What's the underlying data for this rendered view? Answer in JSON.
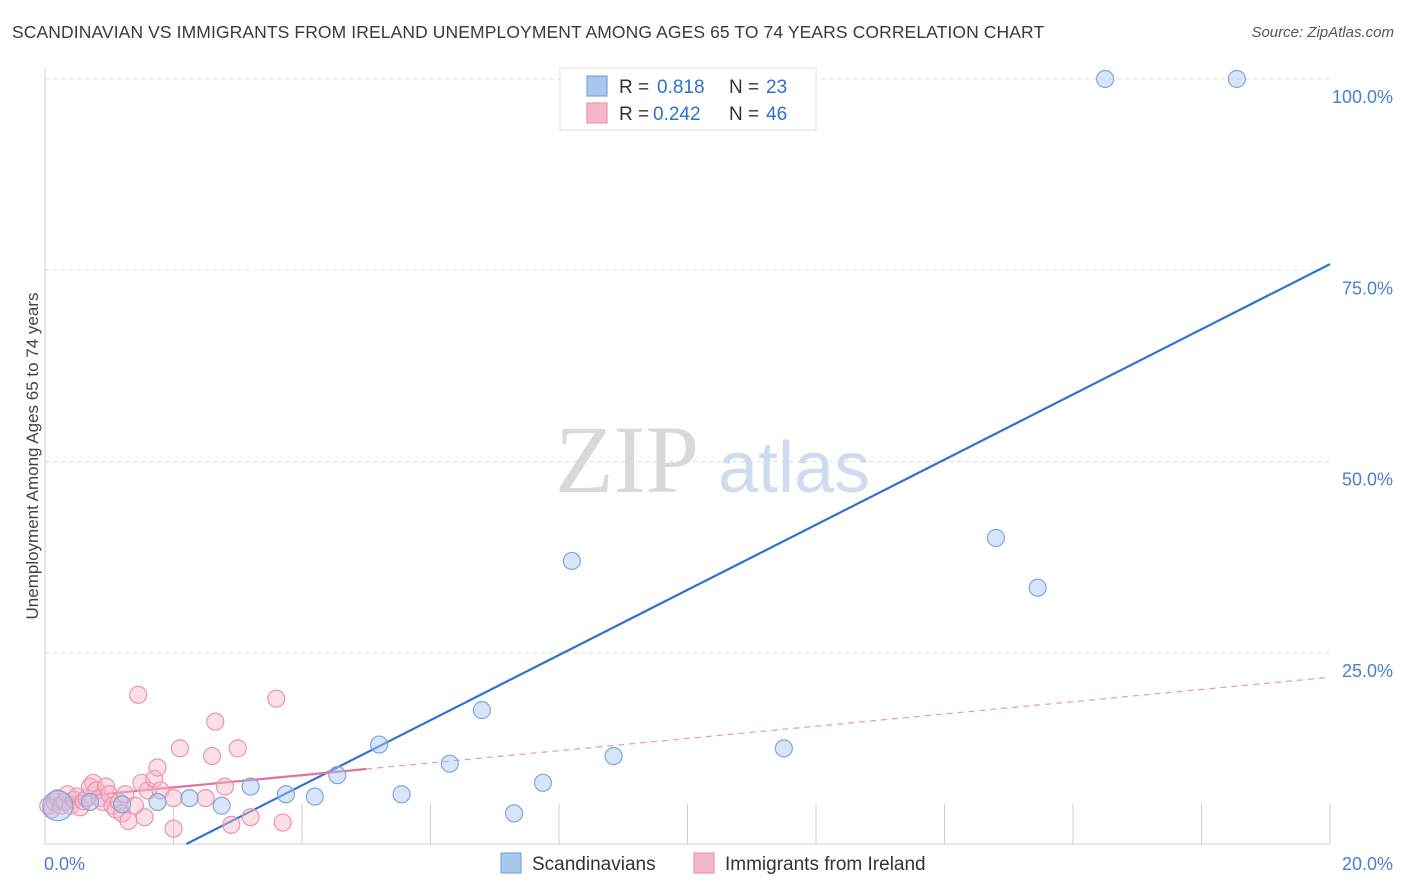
{
  "header": {
    "title": "SCANDINAVIAN VS IMMIGRANTS FROM IRELAND UNEMPLOYMENT AMONG AGES 65 TO 74 YEARS CORRELATION CHART",
    "source": "Source: ZipAtlas.com"
  },
  "watermark": {
    "zip": "ZIP",
    "atlas": "atlas"
  },
  "legend": {
    "series1": {
      "r_label": "R =",
      "r_value": "0.818",
      "n_label": "N =",
      "n_value": "23"
    },
    "series2": {
      "r_label": "R =",
      "r_value": "0.242",
      "n_label": "N =",
      "n_value": "46"
    }
  },
  "bottom_legend": {
    "series1": "Scandinavians",
    "series2": "Immigrants from Ireland"
  },
  "chart_data": {
    "type": "scatter",
    "title": "SCANDINAVIAN VS IMMIGRANTS FROM IRELAND UNEMPLOYMENT AMONG AGES 65 TO 74 YEARS CORRELATION CHART",
    "xlabel": "",
    "ylabel": "Unemployment Among Ages 65 to 74 years",
    "xlim": [
      0,
      20
    ],
    "ylim": [
      0,
      102
    ],
    "x_tick_labels": [
      "0.0%",
      "20.0%"
    ],
    "y_ticks": [
      25,
      50,
      75,
      100
    ],
    "y_tick_labels": [
      "25.0%",
      "50.0%",
      "75.0%",
      "100.0%"
    ],
    "grid": true,
    "colors": {
      "series1": "#a9c6ef",
      "series1_stroke": "#7ea6dd",
      "series1_line": "#2f72cf",
      "series2": "#f5b8ca",
      "series2_stroke": "#ec94ae",
      "series2_line": "#e8719a"
    },
    "series": [
      {
        "name": "Scandinavians",
        "r": 0.818,
        "n": 23,
        "points": [
          {
            "x": 0.2,
            "y": 5.0,
            "big": true
          },
          {
            "x": 0.7,
            "y": 5.5
          },
          {
            "x": 1.2,
            "y": 5.2
          },
          {
            "x": 1.75,
            "y": 5.5
          },
          {
            "x": 2.25,
            "y": 6.0
          },
          {
            "x": 2.75,
            "y": 5.0
          },
          {
            "x": 3.2,
            "y": 7.5
          },
          {
            "x": 3.75,
            "y": 6.5
          },
          {
            "x": 4.2,
            "y": 6.2
          },
          {
            "x": 4.55,
            "y": 9.0
          },
          {
            "x": 5.2,
            "y": 13.0
          },
          {
            "x": 5.55,
            "y": 6.5
          },
          {
            "x": 6.3,
            "y": 10.5
          },
          {
            "x": 6.8,
            "y": 17.5
          },
          {
            "x": 7.3,
            "y": 4.0
          },
          {
            "x": 7.75,
            "y": 8.0
          },
          {
            "x": 8.2,
            "y": 37.0
          },
          {
            "x": 8.85,
            "y": 11.5
          },
          {
            "x": 11.5,
            "y": 12.5
          },
          {
            "x": 14.8,
            "y": 40.0
          },
          {
            "x": 15.45,
            "y": 33.5
          },
          {
            "x": 16.5,
            "y": 100.0
          },
          {
            "x": 18.55,
            "y": 100.0
          }
        ],
        "trend": {
          "x0": 2.2,
          "y0": 0.0,
          "x1": 20.0,
          "y1": 75.8
        }
      },
      {
        "name": "Immigrants from Ireland",
        "r": 0.242,
        "n": 46,
        "points": [
          {
            "x": 0.05,
            "y": 5.0
          },
          {
            "x": 0.1,
            "y": 4.5
          },
          {
            "x": 0.15,
            "y": 5.5
          },
          {
            "x": 0.2,
            "y": 6.0
          },
          {
            "x": 0.25,
            "y": 5.0
          },
          {
            "x": 0.3,
            "y": 5.5
          },
          {
            "x": 0.35,
            "y": 6.5
          },
          {
            "x": 0.4,
            "y": 5.0
          },
          {
            "x": 0.45,
            "y": 5.8
          },
          {
            "x": 0.5,
            "y": 6.2
          },
          {
            "x": 0.55,
            "y": 4.8
          },
          {
            "x": 0.6,
            "y": 5.6
          },
          {
            "x": 0.65,
            "y": 6.0
          },
          {
            "x": 0.7,
            "y": 7.5
          },
          {
            "x": 0.75,
            "y": 8.0
          },
          {
            "x": 0.8,
            "y": 7.0
          },
          {
            "x": 0.85,
            "y": 6.0
          },
          {
            "x": 0.9,
            "y": 5.5
          },
          {
            "x": 0.95,
            "y": 7.5
          },
          {
            "x": 1.0,
            "y": 6.5
          },
          {
            "x": 1.05,
            "y": 5.0
          },
          {
            "x": 1.1,
            "y": 4.5
          },
          {
            "x": 1.15,
            "y": 5.5
          },
          {
            "x": 1.2,
            "y": 4.0
          },
          {
            "x": 1.25,
            "y": 6.5
          },
          {
            "x": 1.3,
            "y": 3.0
          },
          {
            "x": 1.4,
            "y": 5.0
          },
          {
            "x": 1.45,
            "y": 19.5
          },
          {
            "x": 1.5,
            "y": 8.0
          },
          {
            "x": 1.55,
            "y": 3.5
          },
          {
            "x": 1.6,
            "y": 7.0
          },
          {
            "x": 1.7,
            "y": 8.5
          },
          {
            "x": 1.75,
            "y": 10.0
          },
          {
            "x": 1.8,
            "y": 7.0
          },
          {
            "x": 2.0,
            "y": 6.0
          },
          {
            "x": 2.0,
            "y": 2.0
          },
          {
            "x": 2.1,
            "y": 12.5
          },
          {
            "x": 2.5,
            "y": 6.0
          },
          {
            "x": 2.6,
            "y": 11.5
          },
          {
            "x": 2.65,
            "y": 16.0
          },
          {
            "x": 2.8,
            "y": 7.5
          },
          {
            "x": 2.9,
            "y": 2.5
          },
          {
            "x": 3.0,
            "y": 12.5
          },
          {
            "x": 3.2,
            "y": 3.5
          },
          {
            "x": 3.6,
            "y": 19.0
          },
          {
            "x": 3.7,
            "y": 2.8
          }
        ],
        "trend_solid": {
          "x0": 0.0,
          "y0": 5.8,
          "x1": 5.0,
          "y1": 9.8
        },
        "trend_dashed": {
          "x0": 5.0,
          "y0": 9.8,
          "x1": 20.0,
          "y1": 21.8
        }
      }
    ]
  }
}
